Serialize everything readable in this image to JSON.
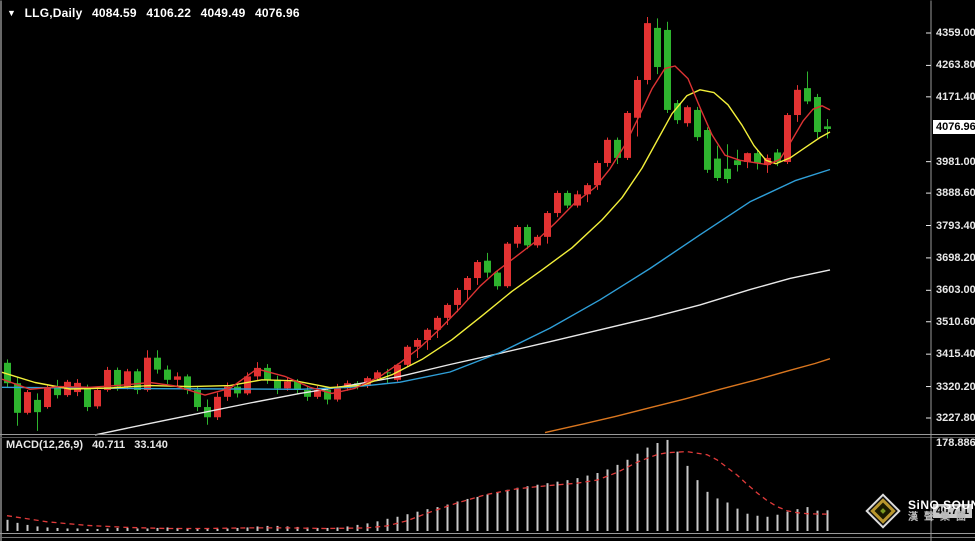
{
  "header": {
    "dropdown_glyph": "▼",
    "symbol": "LLG,Daily",
    "open": "4084.59",
    "high": "4106.22",
    "low": "4049.49",
    "close": "4076.96"
  },
  "indicator_header": {
    "label": "MACD(12,26,9)",
    "main_value": "40.711",
    "signal_value": "33.140"
  },
  "price_axis": {
    "ticks": [
      "4359.00",
      "4263.80",
      "4171.40",
      "3981.00",
      "3888.60",
      "3793.40",
      "3698.20",
      "3603.00",
      "3510.60",
      "3415.40",
      "3320.20",
      "3227.80"
    ],
    "current_price_label": "4076.96"
  },
  "macd_axis": {
    "max_label": "178.886",
    "current_label": "40.711"
  },
  "watermark": {
    "line1": "SiNO SOUND",
    "line2": "漢聲集團"
  },
  "colors": {
    "background": "#000000",
    "candle_up": "#e23232",
    "candle_down": "#2eb42e",
    "ma_fast_red": "#dd3333",
    "ma_yellow": "#f2ef3a",
    "ma_blue": "#2f9fd8",
    "ma_white": "#e8e8e8",
    "ma_orange": "#d9761f",
    "macd_bar": "#c8c8c8",
    "macd_signal": "#e03a3a",
    "axis_text": "#e8e8e8",
    "axis_line": "#9a9a9a",
    "current_label_bg": "#ffffff"
  },
  "chart_data": {
    "type": "candlestick+macd",
    "symbol": "LLG",
    "timeframe": "Daily",
    "note": "red = up, green = down (Chinese convention); OHLC of last bar shown in header",
    "last_bar": {
      "open": 4084.59,
      "high": 4106.22,
      "low": 4049.49,
      "close": 4076.96
    },
    "price_axis_ticks": [
      4359.0,
      4263.8,
      4171.4,
      3981.0,
      3888.6,
      3793.4,
      3698.2,
      3603.0,
      3510.6,
      3415.4,
      3320.2,
      3227.8
    ],
    "current_price": 4076.96,
    "candles": [
      [
        3390,
        3400,
        3318,
        3330
      ],
      [
        3330,
        3348,
        3205,
        3243
      ],
      [
        3243,
        3310,
        3238,
        3304
      ],
      [
        3281,
        3300,
        3190,
        3245
      ],
      [
        3260,
        3325,
        3255,
        3319
      ],
      [
        3319,
        3340,
        3285,
        3295
      ],
      [
        3295,
        3340,
        3290,
        3334
      ],
      [
        3304,
        3342,
        3292,
        3331
      ],
      [
        3316,
        3326,
        3248,
        3260
      ],
      [
        3262,
        3315,
        3255,
        3310
      ],
      [
        3310,
        3378,
        3305,
        3369
      ],
      [
        3369,
        3376,
        3308,
        3320
      ],
      [
        3320,
        3372,
        3312,
        3365
      ],
      [
        3365,
        3372,
        3298,
        3310
      ],
      [
        3310,
        3427,
        3305,
        3405
      ],
      [
        3405,
        3427,
        3358,
        3370
      ],
      [
        3370,
        3382,
        3328,
        3340
      ],
      [
        3340,
        3362,
        3318,
        3350
      ],
      [
        3350,
        3356,
        3298,
        3310
      ],
      [
        3310,
        3322,
        3248,
        3260
      ],
      [
        3260,
        3282,
        3208,
        3230
      ],
      [
        3230,
        3302,
        3222,
        3290
      ],
      [
        3290,
        3332,
        3278,
        3320
      ],
      [
        3320,
        3330,
        3288,
        3300
      ],
      [
        3300,
        3362,
        3295,
        3350
      ],
      [
        3350,
        3392,
        3340,
        3375
      ],
      [
        3375,
        3386,
        3328,
        3340
      ],
      [
        3340,
        3352,
        3298,
        3315
      ],
      [
        3315,
        3346,
        3308,
        3335
      ],
      [
        3335,
        3342,
        3298,
        3310
      ],
      [
        3310,
        3322,
        3278,
        3290
      ],
      [
        3290,
        3322,
        3284,
        3310
      ],
      [
        3310,
        3316,
        3268,
        3282
      ],
      [
        3282,
        3328,
        3276,
        3315
      ],
      [
        3315,
        3338,
        3308,
        3330
      ],
      [
        3330,
        3336,
        3312,
        3322
      ],
      [
        3322,
        3350,
        3316,
        3345
      ],
      [
        3345,
        3368,
        3338,
        3362
      ],
      [
        3362,
        3372,
        3330,
        3360
      ],
      [
        3340,
        3388,
        3335,
        3384
      ],
      [
        3384,
        3442,
        3378,
        3437
      ],
      [
        3437,
        3462,
        3404,
        3457
      ],
      [
        3457,
        3492,
        3428,
        3487
      ],
      [
        3487,
        3528,
        3463,
        3522
      ],
      [
        3522,
        3565,
        3501,
        3560
      ],
      [
        3560,
        3610,
        3539,
        3604
      ],
      [
        3604,
        3645,
        3574,
        3639
      ],
      [
        3639,
        3692,
        3619,
        3686
      ],
      [
        3690,
        3713,
        3640,
        3655
      ],
      [
        3655,
        3662,
        3605,
        3615
      ],
      [
        3615,
        3745,
        3610,
        3740
      ],
      [
        3740,
        3795,
        3728,
        3789
      ],
      [
        3789,
        3796,
        3724,
        3735
      ],
      [
        3735,
        3766,
        3728,
        3760
      ],
      [
        3760,
        3836,
        3740,
        3830
      ],
      [
        3830,
        3896,
        3818,
        3889
      ],
      [
        3889,
        3896,
        3844,
        3852
      ],
      [
        3852,
        3896,
        3846,
        3885
      ],
      [
        3885,
        3918,
        3862,
        3912
      ],
      [
        3912,
        3984,
        3898,
        3977
      ],
      [
        3977,
        4052,
        3966,
        4045
      ],
      [
        4045,
        4052,
        3974,
        3992
      ],
      [
        3992,
        4130,
        3986,
        4124
      ],
      [
        4110,
        4232,
        4055,
        4221
      ],
      [
        4221,
        4406,
        4208,
        4388
      ],
      [
        4374,
        4402,
        4238,
        4259
      ],
      [
        4368,
        4392,
        4124,
        4133
      ],
      [
        4153,
        4162,
        4092,
        4103
      ],
      [
        4094,
        4146,
        4084,
        4141
      ],
      [
        4133,
        4142,
        4042,
        4053
      ],
      [
        4074,
        4082,
        3948,
        3957
      ],
      [
        3990,
        4028,
        3924,
        3933
      ],
      [
        3960,
        4032,
        3918,
        3930
      ],
      [
        3985,
        4016,
        3952,
        3971
      ],
      [
        3980,
        4008,
        3962,
        4006
      ],
      [
        4006,
        4016,
        3958,
        3977
      ],
      [
        3971,
        4002,
        3948,
        3992
      ],
      [
        4008,
        4018,
        3968,
        3980
      ],
      [
        3980,
        4124,
        3974,
        4118
      ],
      [
        4118,
        4206,
        4098,
        4192
      ],
      [
        4197,
        4246,
        4150,
        4158
      ],
      [
        4171,
        4180,
        4050,
        4068
      ],
      [
        4084.59,
        4106.22,
        4049.49,
        4076.96
      ]
    ],
    "moving_averages": [
      {
        "name": "ma-white-slow",
        "color": "#e8e8e8",
        "points": [
          [
            95,
            3178
          ],
          [
            150,
            3212
          ],
          [
            200,
            3242
          ],
          [
            250,
            3272
          ],
          [
            300,
            3300
          ],
          [
            350,
            3324
          ],
          [
            400,
            3350
          ],
          [
            450,
            3385
          ],
          [
            500,
            3418
          ],
          [
            550,
            3452
          ],
          [
            600,
            3487
          ],
          [
            650,
            3522
          ],
          [
            700,
            3560
          ],
          [
            750,
            3605
          ],
          [
            790,
            3638
          ],
          [
            830,
            3663
          ]
        ]
      },
      {
        "name": "ma-orange-slowest",
        "color": "#d9761f",
        "points": [
          [
            545,
            3185
          ],
          [
            580,
            3208
          ],
          [
            615,
            3232
          ],
          [
            650,
            3258
          ],
          [
            685,
            3284
          ],
          [
            720,
            3312
          ],
          [
            755,
            3339
          ],
          [
            790,
            3368
          ],
          [
            815,
            3388
          ],
          [
            830,
            3402
          ]
        ]
      },
      {
        "name": "ma-blue-mid",
        "color": "#2f9fd8",
        "points": [
          [
            2,
            3318
          ],
          [
            80,
            3316
          ],
          [
            160,
            3314
          ],
          [
            240,
            3313
          ],
          [
            300,
            3312
          ],
          [
            350,
            3318
          ],
          [
            400,
            3333
          ],
          [
            450,
            3363
          ],
          [
            500,
            3420
          ],
          [
            550,
            3492
          ],
          [
            600,
            3575
          ],
          [
            650,
            3667
          ],
          [
            700,
            3766
          ],
          [
            750,
            3863
          ],
          [
            795,
            3925
          ],
          [
            830,
            3958
          ]
        ]
      },
      {
        "name": "ma-yellow-medium",
        "color": "#f2ef3a",
        "points": [
          [
            2,
            3362
          ],
          [
            35,
            3332
          ],
          [
            70,
            3313
          ],
          [
            110,
            3316
          ],
          [
            150,
            3323
          ],
          [
            190,
            3320
          ],
          [
            230,
            3323
          ],
          [
            262,
            3340
          ],
          [
            295,
            3337
          ],
          [
            330,
            3317
          ],
          [
            362,
            3324
          ],
          [
            392,
            3355
          ],
          [
            422,
            3400
          ],
          [
            452,
            3458
          ],
          [
            482,
            3528
          ],
          [
            512,
            3600
          ],
          [
            542,
            3663
          ],
          [
            572,
            3728
          ],
          [
            602,
            3810
          ],
          [
            622,
            3875
          ],
          [
            642,
            3962
          ],
          [
            657,
            4042
          ],
          [
            672,
            4122
          ],
          [
            687,
            4175
          ],
          [
            700,
            4192
          ],
          [
            714,
            4184
          ],
          [
            728,
            4148
          ],
          [
            742,
            4088
          ],
          [
            754,
            4028
          ],
          [
            766,
            3985
          ],
          [
            776,
            3975
          ],
          [
            790,
            3992
          ],
          [
            805,
            4022
          ],
          [
            820,
            4052
          ],
          [
            830,
            4068
          ]
        ]
      },
      {
        "name": "ma-red-fast",
        "color": "#dd3333",
        "points": [
          [
            2,
            3342
          ],
          [
            30,
            3312
          ],
          [
            60,
            3320
          ],
          [
            90,
            3318
          ],
          [
            120,
            3324
          ],
          [
            150,
            3332
          ],
          [
            175,
            3322
          ],
          [
            205,
            3295
          ],
          [
            230,
            3315
          ],
          [
            257,
            3372
          ],
          [
            285,
            3350
          ],
          [
            310,
            3318
          ],
          [
            332,
            3300
          ],
          [
            355,
            3315
          ],
          [
            380,
            3350
          ],
          [
            400,
            3390
          ],
          [
            420,
            3435
          ],
          [
            440,
            3490
          ],
          [
            460,
            3550
          ],
          [
            480,
            3615
          ],
          [
            495,
            3655
          ],
          [
            515,
            3700
          ],
          [
            535,
            3745
          ],
          [
            555,
            3800
          ],
          [
            575,
            3860
          ],
          [
            595,
            3905
          ],
          [
            610,
            3960
          ],
          [
            625,
            4030
          ],
          [
            640,
            4120
          ],
          [
            652,
            4195
          ],
          [
            665,
            4255
          ],
          [
            675,
            4262
          ],
          [
            688,
            4225
          ],
          [
            700,
            4140
          ],
          [
            712,
            4060
          ],
          [
            725,
            4000
          ],
          [
            740,
            3985
          ],
          [
            755,
            3978
          ],
          [
            768,
            3972
          ],
          [
            780,
            3988
          ],
          [
            792,
            4045
          ],
          [
            803,
            4100
          ],
          [
            813,
            4135
          ],
          [
            822,
            4145
          ],
          [
            830,
            4133
          ]
        ]
      }
    ],
    "macd": {
      "label": "MACD(12,26,9)",
      "main": 40.711,
      "signal": 33.14,
      "scale_max": 178.886,
      "histogram": [
        22,
        16,
        12,
        9,
        7,
        6,
        5,
        5,
        4,
        4,
        5,
        6,
        6,
        5,
        5,
        6,
        7,
        6,
        5,
        4,
        4,
        4,
        5,
        6,
        7,
        9,
        10,
        10,
        9,
        8,
        7,
        6,
        6,
        7,
        9,
        12,
        15,
        19,
        24,
        28,
        33,
        38,
        43,
        47,
        52,
        58,
        63,
        67,
        72,
        76,
        81,
        85,
        88,
        91,
        94,
        97,
        100,
        104,
        109,
        114,
        121,
        130,
        140,
        152,
        164,
        173,
        179,
        156,
        128,
        100,
        77,
        64,
        56,
        44,
        34,
        30,
        28,
        32,
        38,
        43,
        47,
        40,
        40.711
      ],
      "signal_points": [
        [
          0,
          30
        ],
        [
          4,
          18
        ],
        [
          8,
          11
        ],
        [
          12,
          7
        ],
        [
          16,
          5
        ],
        [
          20,
          5
        ],
        [
          24,
          6
        ],
        [
          28,
          6
        ],
        [
          32,
          5
        ],
        [
          36,
          6
        ],
        [
          38,
          10
        ],
        [
          40,
          20
        ],
        [
          42,
          35
        ],
        [
          45,
          55
        ],
        [
          48,
          72
        ],
        [
          51,
          83
        ],
        [
          54,
          89
        ],
        [
          57,
          94
        ],
        [
          59,
          100
        ],
        [
          61,
          115
        ],
        [
          63,
          135
        ],
        [
          64,
          143
        ],
        [
          65,
          150
        ],
        [
          66,
          154
        ],
        [
          68,
          156
        ],
        [
          70,
          150
        ],
        [
          71,
          140
        ],
        [
          72,
          125
        ],
        [
          73,
          110
        ],
        [
          74,
          92
        ],
        [
          75,
          75
        ],
        [
          76,
          60
        ],
        [
          77,
          48
        ],
        [
          78,
          40
        ],
        [
          79,
          36
        ],
        [
          80,
          34
        ],
        [
          81,
          33.5
        ],
        [
          82,
          33.14
        ]
      ]
    }
  }
}
